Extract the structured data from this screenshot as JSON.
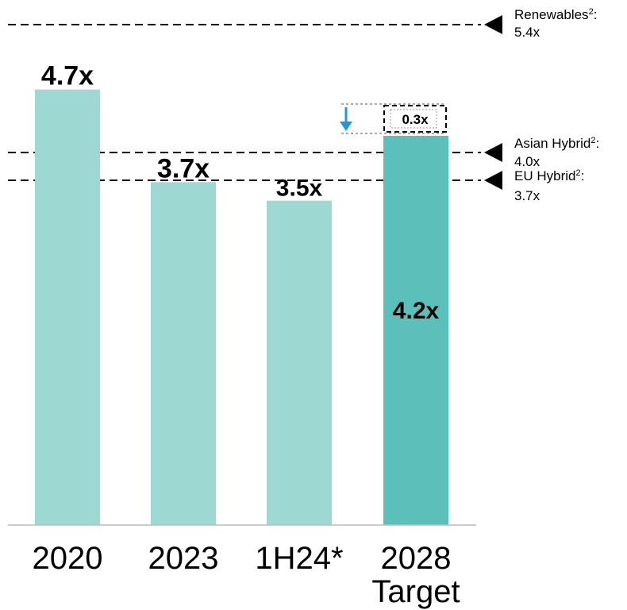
{
  "chart_data": {
    "type": "bar",
    "categories": [
      "2020",
      "2023",
      "1H24*",
      "2028 Target"
    ],
    "values": [
      4.7,
      3.7,
      3.5,
      4.2
    ],
    "value_labels": [
      "4.7x",
      "3.7x",
      "3.5x",
      "4.2x"
    ],
    "bar_colors": [
      "#9dd8d3",
      "#9dd8d3",
      "#9dd8d3",
      "#5bbfba"
    ],
    "ylim": [
      0,
      5.4
    ],
    "grid": false,
    "reference_lines": [
      {
        "name": "Renewables",
        "sup": "2",
        "value_label": "5.4x",
        "value": 5.4
      },
      {
        "name": "Asian Hybrid",
        "sup": "2",
        "value_label": "4.0x",
        "value": 4.0
      },
      {
        "name": "EU Hybrid",
        "sup": "2",
        "value_label": "3.7x",
        "value": 3.7
      }
    ],
    "gap_annotation": {
      "label": "0.3x",
      "from": 4.2,
      "to": 4.5,
      "arrow_color": "#1a9be0"
    }
  }
}
